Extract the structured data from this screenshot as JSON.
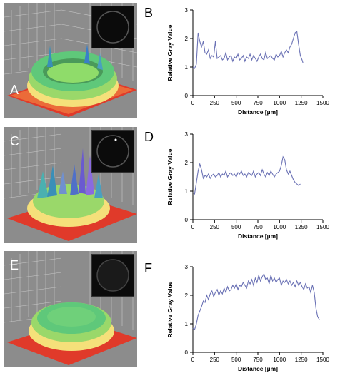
{
  "panels": [
    {
      "letter": "A"
    },
    {
      "letter": "B"
    },
    {
      "letter": "C"
    },
    {
      "letter": "D"
    },
    {
      "letter": "E"
    },
    {
      "letter": "F"
    }
  ],
  "colors": {
    "line": "#6b72b5",
    "panel_bg": "#8c8c8c",
    "surface_base": "#e03a2a"
  },
  "chart_data": [
    {
      "panel": "B",
      "type": "line",
      "xlabel": "Distance [µm]",
      "ylabel": "Relative Gray Value",
      "xlim": [
        0,
        1500
      ],
      "ylim": [
        0,
        3
      ],
      "xticks": [
        "0",
        "250",
        "500",
        "750",
        "1000",
        "1250",
        "1500"
      ],
      "yticks": [
        "0",
        "1",
        "2",
        "3"
      ],
      "x": [
        0,
        20,
        40,
        60,
        80,
        100,
        120,
        140,
        160,
        180,
        200,
        220,
        240,
        260,
        280,
        300,
        320,
        340,
        360,
        380,
        400,
        420,
        440,
        460,
        480,
        500,
        520,
        540,
        560,
        580,
        600,
        620,
        640,
        660,
        680,
        700,
        720,
        740,
        760,
        780,
        800,
        820,
        840,
        860,
        880,
        900,
        920,
        940,
        960,
        980,
        1000,
        1020,
        1040,
        1060,
        1080,
        1100,
        1120,
        1140,
        1160,
        1180,
        1200,
        1220,
        1240,
        1260,
        1270
      ],
      "y": [
        1.0,
        0.95,
        1.1,
        2.2,
        1.9,
        1.7,
        1.9,
        1.5,
        1.45,
        1.6,
        1.3,
        1.4,
        1.35,
        1.9,
        1.3,
        1.35,
        1.4,
        1.25,
        1.3,
        1.5,
        1.25,
        1.35,
        1.4,
        1.2,
        1.35,
        1.3,
        1.45,
        1.25,
        1.3,
        1.4,
        1.2,
        1.35,
        1.3,
        1.45,
        1.25,
        1.4,
        1.3,
        1.2,
        1.35,
        1.45,
        1.3,
        1.25,
        1.5,
        1.3,
        1.35,
        1.4,
        1.3,
        1.25,
        1.45,
        1.35,
        1.4,
        1.55,
        1.35,
        1.5,
        1.6,
        1.5,
        1.7,
        1.8,
        2.0,
        2.2,
        2.25,
        1.8,
        1.4,
        1.25,
        1.15
      ]
    },
    {
      "panel": "D",
      "type": "line",
      "xlabel": "Distance [µm]",
      "ylabel": "Relative Gray Value",
      "xlim": [
        0,
        1500
      ],
      "ylim": [
        0,
        3
      ],
      "xticks": [
        "0",
        "250",
        "500",
        "750",
        "1000",
        "1250",
        "1500"
      ],
      "yticks": [
        "0",
        "1",
        "2",
        "3"
      ],
      "x": [
        0,
        20,
        40,
        60,
        80,
        100,
        120,
        140,
        160,
        180,
        200,
        220,
        240,
        260,
        280,
        300,
        320,
        340,
        360,
        380,
        400,
        420,
        440,
        460,
        480,
        500,
        520,
        540,
        560,
        580,
        600,
        620,
        640,
        660,
        680,
        700,
        720,
        740,
        760,
        780,
        800,
        820,
        840,
        860,
        880,
        900,
        920,
        940,
        960,
        980,
        1000,
        1020,
        1040,
        1060,
        1080,
        1100,
        1120,
        1140,
        1160,
        1180,
        1200,
        1220,
        1240
      ],
      "y": [
        0.95,
        0.9,
        1.3,
        1.7,
        1.95,
        1.75,
        1.45,
        1.55,
        1.5,
        1.6,
        1.45,
        1.55,
        1.6,
        1.5,
        1.55,
        1.65,
        1.5,
        1.6,
        1.55,
        1.7,
        1.5,
        1.6,
        1.65,
        1.55,
        1.6,
        1.5,
        1.65,
        1.6,
        1.7,
        1.55,
        1.6,
        1.5,
        1.65,
        1.6,
        1.55,
        1.7,
        1.5,
        1.6,
        1.65,
        1.55,
        1.75,
        1.6,
        1.5,
        1.65,
        1.55,
        1.7,
        1.6,
        1.5,
        1.6,
        1.65,
        1.7,
        1.9,
        2.2,
        2.1,
        1.75,
        1.6,
        1.7,
        1.55,
        1.4,
        1.3,
        1.25,
        1.2,
        1.25
      ]
    },
    {
      "panel": "F",
      "type": "line",
      "xlabel": "Distance [µm]",
      "ylabel": "Relative Gray Value",
      "xlim": [
        0,
        1500
      ],
      "ylim": [
        0,
        3
      ],
      "xticks": [
        "0",
        "250",
        "500",
        "750",
        "1000",
        "1250",
        "1500"
      ],
      "yticks": [
        "0",
        "1",
        "2",
        "3"
      ],
      "x": [
        0,
        20,
        40,
        60,
        80,
        100,
        120,
        140,
        160,
        180,
        200,
        220,
        240,
        260,
        280,
        300,
        320,
        340,
        360,
        380,
        400,
        420,
        440,
        460,
        480,
        500,
        520,
        540,
        560,
        580,
        600,
        620,
        640,
        660,
        680,
        700,
        720,
        740,
        760,
        780,
        800,
        820,
        840,
        860,
        880,
        900,
        920,
        940,
        960,
        980,
        1000,
        1020,
        1040,
        1060,
        1080,
        1100,
        1120,
        1140,
        1160,
        1180,
        1200,
        1220,
        1240,
        1260,
        1280,
        1300,
        1320,
        1340,
        1360,
        1380,
        1400,
        1420,
        1440,
        1460
      ],
      "y": [
        0.85,
        0.8,
        1.0,
        1.3,
        1.45,
        1.6,
        1.8,
        1.75,
        2.0,
        1.85,
        2.05,
        2.15,
        1.95,
        2.1,
        2.2,
        2.0,
        2.15,
        2.05,
        2.25,
        2.1,
        2.3,
        2.15,
        2.2,
        2.35,
        2.25,
        2.4,
        2.2,
        2.35,
        2.3,
        2.45,
        2.35,
        2.25,
        2.5,
        2.4,
        2.55,
        2.35,
        2.6,
        2.45,
        2.7,
        2.5,
        2.65,
        2.75,
        2.55,
        2.6,
        2.4,
        2.7,
        2.5,
        2.6,
        2.45,
        2.55,
        2.6,
        2.35,
        2.5,
        2.45,
        2.55,
        2.4,
        2.5,
        2.35,
        2.45,
        2.3,
        2.5,
        2.35,
        2.45,
        2.3,
        2.2,
        2.4,
        2.25,
        2.3,
        2.1,
        2.35,
        2.1,
        1.55,
        1.25,
        1.15
      ]
    }
  ]
}
